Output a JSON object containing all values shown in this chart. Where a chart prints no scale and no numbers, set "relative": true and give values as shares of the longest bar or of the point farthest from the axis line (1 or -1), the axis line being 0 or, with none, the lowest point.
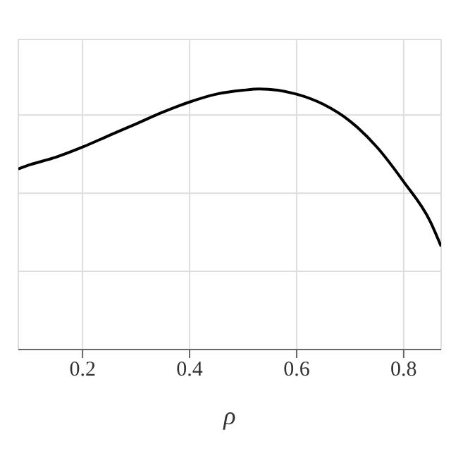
{
  "chart_data": {
    "type": "line",
    "xlabel": "ρ",
    "relative": true,
    "grid": true,
    "marker": "none",
    "line_style": "solid",
    "xlim": [
      0.08,
      0.87
    ],
    "xticks": [
      0.2,
      0.4,
      0.6,
      0.8
    ],
    "x": [
      0.08,
      0.1,
      0.15,
      0.2,
      0.25,
      0.3,
      0.35,
      0.4,
      0.45,
      0.5,
      0.53,
      0.6,
      0.65,
      0.7,
      0.75,
      0.8,
      0.85,
      0.87
    ],
    "series": [
      {
        "color": "#000000",
        "values": [
          0.693,
          0.708,
          0.738,
          0.777,
          0.822,
          0.866,
          0.911,
          0.95,
          0.98,
          0.995,
          1.0,
          0.98,
          0.941,
          0.876,
          0.777,
          0.644,
          0.49,
          0.396
        ]
      }
    ]
  }
}
